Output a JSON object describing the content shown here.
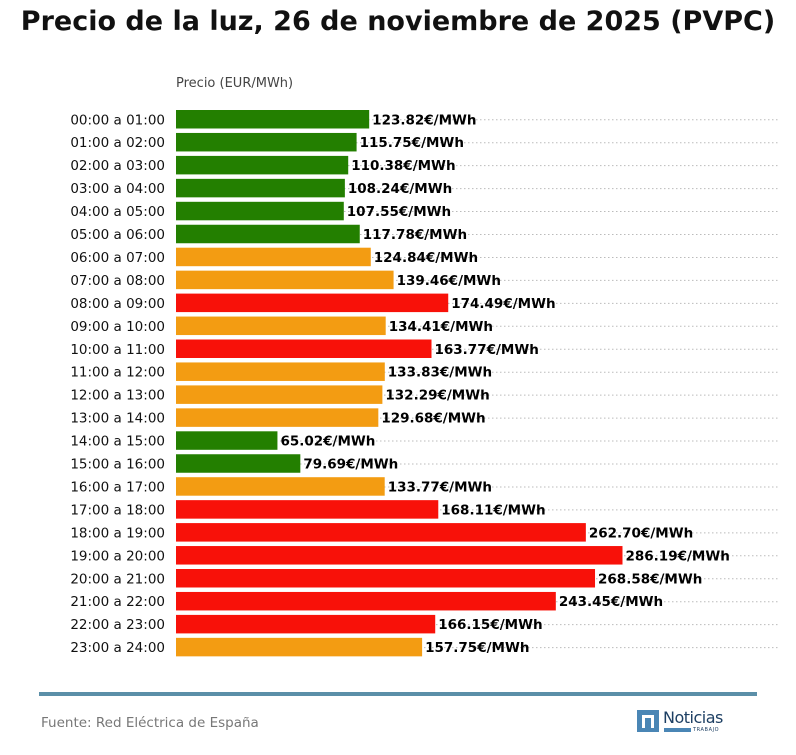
{
  "title": "Precio de la luz, 26 de noviembre de 2025 (PVPC)",
  "footer": {
    "source": "Fuente: Red Eléctrica de España",
    "rule_color": "#5b8fa8"
  },
  "logo": {
    "name": "Noticias",
    "sub": "TRABAJO",
    "icon": "n-mark-logo-icon",
    "color": "#1d3f63",
    "accent": "#4a86b5"
  },
  "chart_data": {
    "type": "bar",
    "orientation": "horizontal",
    "ylabel": "Precio (EUR/MWh)",
    "value_suffix": "€/MWh",
    "grid": "dotted horizontal lines",
    "colors": {
      "low": "#237f00",
      "medium": "#f39c12",
      "high": "#f81109"
    },
    "categories": [
      "00:00 a 01:00",
      "01:00 a 02:00",
      "02:00 a 03:00",
      "03:00 a 04:00",
      "04:00 a 05:00",
      "05:00 a 06:00",
      "06:00 a 07:00",
      "07:00 a 08:00",
      "08:00 a 09:00",
      "09:00 a 10:00",
      "10:00 a 11:00",
      "11:00 a 12:00",
      "12:00 a 13:00",
      "13:00 a 14:00",
      "14:00 a 15:00",
      "15:00 a 16:00",
      "16:00 a 17:00",
      "17:00 a 18:00",
      "18:00 a 19:00",
      "19:00 a 20:00",
      "20:00 a 21:00",
      "21:00 a 22:00",
      "22:00 a 23:00",
      "23:00 a 24:00"
    ],
    "values": [
      123.82,
      115.75,
      110.38,
      108.24,
      107.55,
      117.78,
      124.84,
      139.46,
      174.49,
      134.41,
      163.77,
      133.83,
      132.29,
      129.68,
      65.02,
      79.69,
      133.77,
      168.11,
      262.7,
      286.19,
      268.58,
      243.45,
      166.15,
      157.75
    ],
    "levels": [
      "low",
      "low",
      "low",
      "low",
      "low",
      "low",
      "medium",
      "medium",
      "high",
      "medium",
      "high",
      "medium",
      "medium",
      "medium",
      "low",
      "low",
      "medium",
      "high",
      "high",
      "high",
      "high",
      "high",
      "high",
      "medium"
    ],
    "labels": [
      "123.82€/MWh",
      "115.75€/MWh",
      "110.38€/MWh",
      "108.24€/MWh",
      "107.55€/MWh",
      "117.78€/MWh",
      "124.84€/MWh",
      "139.46€/MWh",
      "174.49€/MWh",
      "134.41€/MWh",
      "163.77€/MWh",
      "133.83€/MWh",
      "132.29€/MWh",
      "129.68€/MWh",
      "65.02€/MWh",
      "79.69€/MWh",
      "133.77€/MWh",
      "168.11€/MWh",
      "262.70€/MWh",
      "286.19€/MWh",
      "268.58€/MWh",
      "243.45€/MWh",
      "166.15€/MWh",
      "157.75€/MWh"
    ]
  }
}
